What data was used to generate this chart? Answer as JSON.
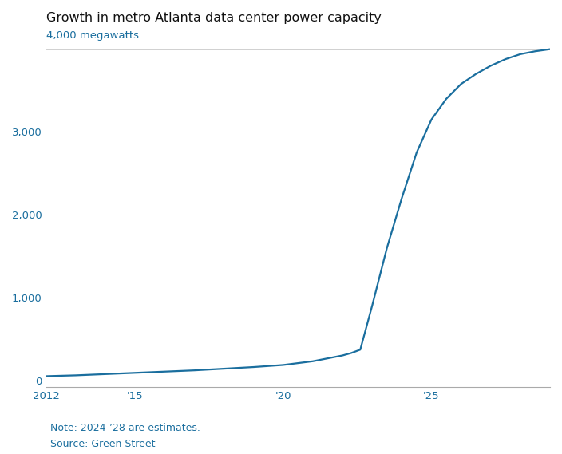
{
  "title": "Growth in metro Atlanta data center power capacity",
  "ylabel_annotation": "4,000 megawatts",
  "line_color": "#1a6e9e",
  "line_width": 1.6,
  "background_color": "#ffffff",
  "grid_color": "#d0d0d0",
  "note": "Note: 2024-’28 are estimates.",
  "source": "Source: Green Street",
  "x": [
    2012,
    2013,
    2014,
    2015,
    2016,
    2017,
    2018,
    2019,
    2020,
    2021,
    2022,
    2022.3,
    2022.6,
    2023,
    2023.5,
    2024,
    2024.5,
    2025,
    2025.5,
    2026,
    2026.5,
    2027,
    2027.5,
    2028,
    2028.5,
    2029
  ],
  "y": [
    50,
    60,
    75,
    90,
    105,
    120,
    140,
    160,
    185,
    230,
    300,
    330,
    370,
    900,
    1600,
    2200,
    2750,
    3150,
    3400,
    3580,
    3700,
    3800,
    3880,
    3940,
    3975,
    4000
  ],
  "xlim": [
    2012,
    2029
  ],
  "ylim": [
    -80,
    4200
  ],
  "yticks": [
    0,
    1000,
    2000,
    3000,
    4000
  ],
  "xticks": [
    2012,
    2015,
    2020,
    2025
  ],
  "xtick_labels": [
    "2012",
    "'15",
    "'20",
    "'25"
  ],
  "label_color": "#1a6e9e",
  "tick_color": "#1a6e9e",
  "note_color": "#1a6e9e",
  "title_fontsize": 11.5,
  "tick_fontsize": 9.5,
  "note_fontsize": 9,
  "title_fontweight": "normal"
}
